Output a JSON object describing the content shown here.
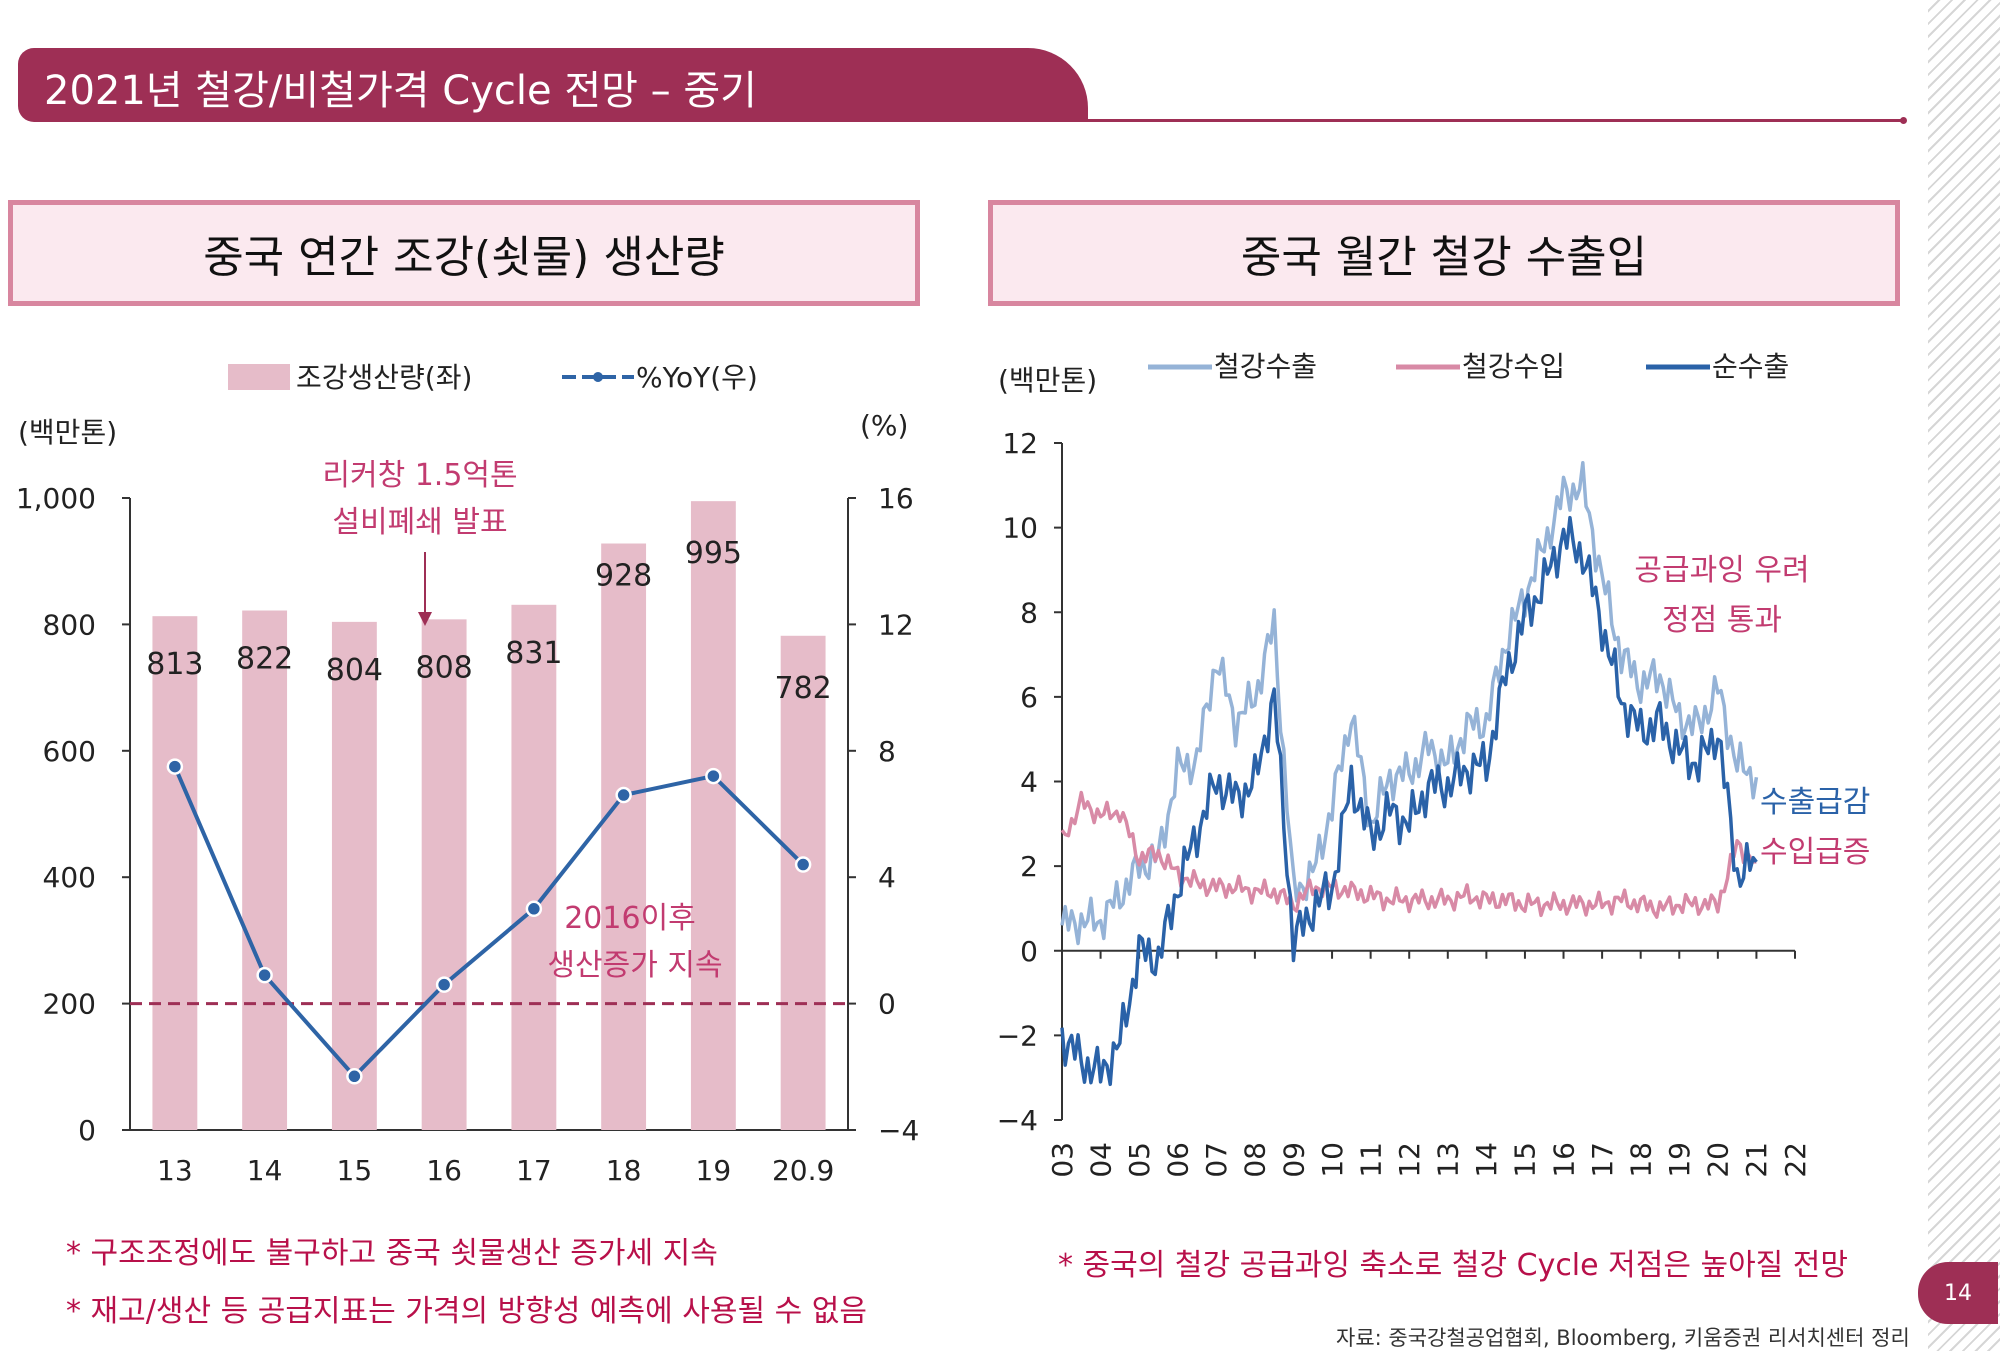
{
  "header": {
    "title": "2021년 철강/비철가격 Cycle 전망 – 중기"
  },
  "left_panel": {
    "heading": "중국 연간 조강(쇳물) 생산량",
    "left_unit": "(백만톤)",
    "right_unit": "(%)",
    "annotation_1": [
      "리커창 1.5억톤",
      "설비폐쇄 발표"
    ],
    "annotation_2": [
      "2016이후",
      "생산증가 지속"
    ]
  },
  "right_panel": {
    "heading": "중국 월간 철강 수출입",
    "unit": "(백만톤)",
    "annotation_1": [
      "공급과잉 우려",
      "정점 통과"
    ],
    "annotation_2": "수출급감",
    "annotation_3": "수입급증"
  },
  "footnotes": {
    "left": [
      "* 구조조정에도 불구하고 중국 쇳물생산 증가세 지속",
      "* 재고/생산 등 공급지표는 가격의 방향성 예측에 사용될 수 없음"
    ],
    "right": "* 중국의 철강 공급과잉 축소로 철강 Cycle 저점은 높아질 전망"
  },
  "source": "자료: 중국강철공업협회, Bloomberg, 키움증권 리서치센터 정리",
  "page_number": "14",
  "colors": {
    "brand": "#9e2f55",
    "bar": "#e6bcc9",
    "line": "#2e64a6",
    "pink": "#c23b70",
    "export": "#95b3d7",
    "import": "#d88aa6",
    "net": "#2a62a8"
  },
  "chart_data": [
    {
      "type": "bar",
      "categories": [
        "13",
        "14",
        "15",
        "16",
        "17",
        "18",
        "19",
        "20.9"
      ],
      "series": [
        {
          "name": "조강생산량(좌)",
          "axis": "left",
          "values": [
            813,
            822,
            804,
            808,
            831,
            928,
            995,
            782
          ]
        },
        {
          "name": "%YoY(우)",
          "axis": "right",
          "type": "line",
          "values": [
            7.5,
            0.9,
            -2.3,
            0.6,
            3.0,
            6.6,
            7.2,
            4.4
          ]
        }
      ],
      "ylim_left": [
        0,
        1000
      ],
      "yticks_left": [
        "0",
        "200",
        "400",
        "600",
        "800",
        "1,000"
      ],
      "ylim_right": [
        -4,
        16
      ],
      "yticks_right": [
        "−4",
        "0",
        "4",
        "8",
        "12",
        "16"
      ],
      "reference_line": {
        "axis": "right",
        "value": 0,
        "style": "dashed"
      },
      "legend_position": "top"
    },
    {
      "type": "line",
      "x_ticks": [
        "03",
        "04",
        "05",
        "06",
        "07",
        "08",
        "09",
        "10",
        "11",
        "12",
        "13",
        "14",
        "15",
        "16",
        "17",
        "18",
        "19",
        "20",
        "21",
        "22"
      ],
      "ylim": [
        -4,
        12
      ],
      "yticks": [
        "−4",
        "−2",
        "0",
        "2",
        "4",
        "6",
        "8",
        "10",
        "12"
      ],
      "legend_position": "top",
      "series": [
        {
          "name": "철강수출",
          "x": [
            2003.0,
            2003.5,
            2004.0,
            2004.5,
            2005.0,
            2005.5,
            2006.0,
            2006.5,
            2007.0,
            2007.5,
            2008.0,
            2008.5,
            2009.0,
            2009.5,
            2010.0,
            2010.5,
            2011.0,
            2011.5,
            2012.0,
            2012.5,
            2013.0,
            2013.5,
            2014.0,
            2014.5,
            2015.0,
            2015.5,
            2016.0,
            2016.5,
            2017.0,
            2017.5,
            2018.0,
            2018.5,
            2019.0,
            2019.5,
            2020.0,
            2020.5,
            2021.0
          ],
          "values": [
            0.6,
            0.7,
            0.7,
            1.3,
            2.0,
            2.2,
            4.3,
            4.5,
            6.9,
            5.4,
            6.0,
            7.7,
            1.4,
            1.8,
            3.4,
            5.6,
            3.0,
            4.1,
            4.2,
            4.8,
            4.4,
            5.3,
            5.4,
            7.3,
            8.4,
            9.6,
            10.8,
            11.0,
            8.8,
            7.0,
            6.3,
            6.5,
            5.5,
            5.3,
            6.2,
            4.4,
            4.1
          ]
        },
        {
          "name": "철강수입",
          "x": [
            2003.0,
            2003.5,
            2004.0,
            2004.5,
            2005.0,
            2005.5,
            2006.0,
            2006.5,
            2007.0,
            2007.5,
            2008.0,
            2008.5,
            2009.0,
            2009.5,
            2010.0,
            2010.5,
            2011.0,
            2011.5,
            2012.0,
            2012.5,
            2013.0,
            2013.5,
            2014.0,
            2014.5,
            2015.0,
            2015.5,
            2016.0,
            2016.5,
            2017.0,
            2017.5,
            2018.0,
            2018.5,
            2019.0,
            2019.5,
            2020.0,
            2020.5,
            2021.0
          ],
          "values": [
            2.6,
            3.5,
            3.2,
            3.3,
            2.2,
            2.3,
            1.8,
            1.6,
            1.5,
            1.5,
            1.4,
            1.4,
            1.1,
            1.5,
            1.5,
            1.4,
            1.3,
            1.2,
            1.2,
            1.2,
            1.2,
            1.3,
            1.2,
            1.2,
            1.1,
            1.1,
            1.1,
            1.1,
            1.1,
            1.2,
            1.1,
            1.0,
            1.1,
            1.1,
            1.1,
            2.5,
            2.1
          ]
        },
        {
          "name": "순수출",
          "x": [
            2003.0,
            2003.5,
            2004.0,
            2004.5,
            2005.0,
            2005.5,
            2006.0,
            2006.5,
            2007.0,
            2007.5,
            2008.0,
            2008.5,
            2009.0,
            2009.5,
            2010.0,
            2010.5,
            2011.0,
            2011.5,
            2012.0,
            2012.5,
            2013.0,
            2013.5,
            2014.0,
            2014.5,
            2015.0,
            2015.5,
            2016.0,
            2016.5,
            2017.0,
            2017.5,
            2018.0,
            2018.5,
            2019.0,
            2019.5,
            2020.0,
            2020.5,
            2021.0
          ],
          "values": [
            -2.0,
            -2.6,
            -2.9,
            -2.2,
            0.0,
            -0.2,
            1.5,
            2.8,
            4.0,
            3.6,
            4.0,
            6.0,
            0.2,
            1.0,
            1.5,
            4.0,
            2.7,
            3.3,
            3.0,
            3.9,
            3.9,
            4.3,
            4.4,
            6.5,
            7.9,
            8.7,
            9.8,
            9.4,
            7.7,
            5.9,
            5.2,
            5.4,
            4.7,
            4.4,
            5.2,
            1.8,
            2.1
          ]
        }
      ]
    }
  ]
}
